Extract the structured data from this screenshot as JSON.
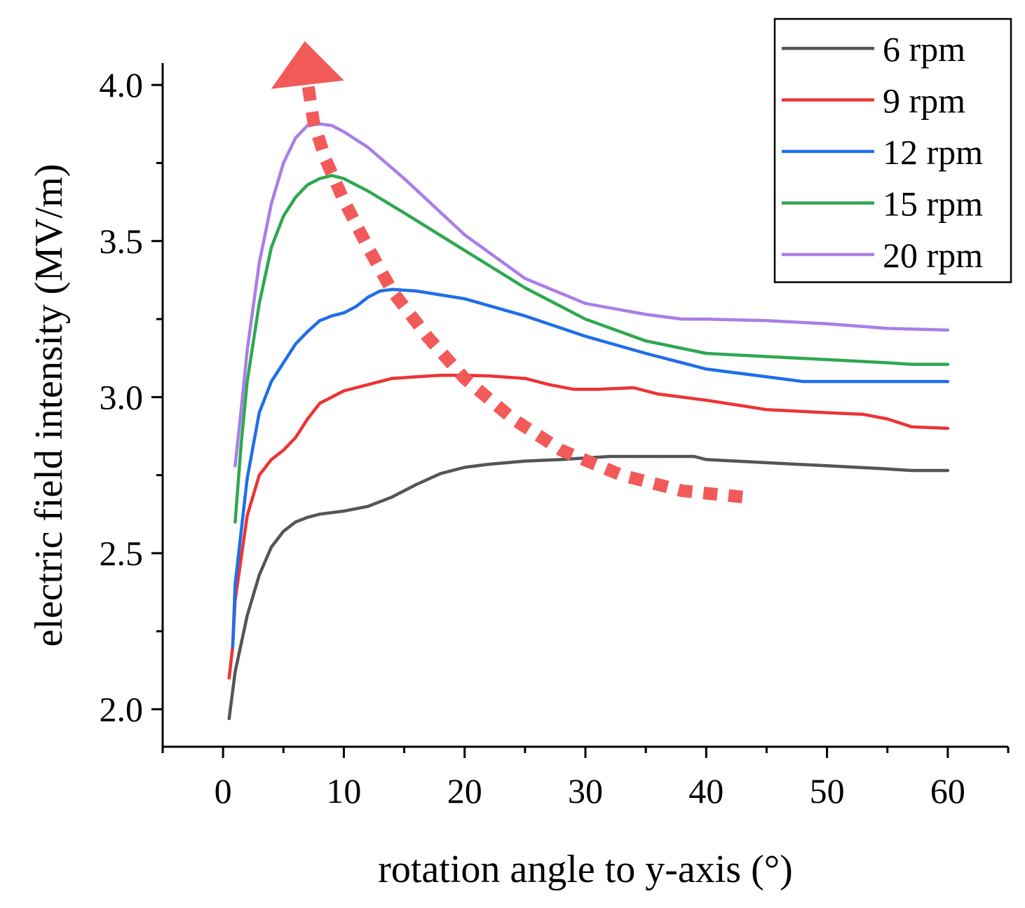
{
  "chart_data": {
    "type": "line",
    "title": "",
    "xlabel": "rotation angle to y-axis (°)",
    "ylabel": "electric field intensity (MV/m)",
    "xlim": [
      -5,
      65
    ],
    "ylim": [
      1.88,
      4.07
    ],
    "x_ticks": [
      0,
      10,
      20,
      30,
      40,
      50,
      60
    ],
    "y_ticks": [
      2.0,
      2.5,
      3.0,
      3.5,
      4.0
    ],
    "x_tick_labels": [
      "0",
      "10",
      "20",
      "30",
      "40",
      "50",
      "60"
    ],
    "y_tick_labels": [
      "2.0",
      "2.5",
      "3.0",
      "3.5",
      "4.0"
    ],
    "grid": false,
    "legend_position": "top-right",
    "series": [
      {
        "name": "6 rpm",
        "color": "#555555",
        "x": [
          0.5,
          1,
          2,
          3,
          4,
          5,
          6,
          7,
          8,
          10,
          12,
          14,
          16,
          18,
          20,
          22,
          25,
          28,
          32,
          36,
          39,
          40,
          45,
          50,
          55,
          57,
          60
        ],
        "y": [
          1.97,
          2.12,
          2.3,
          2.43,
          2.52,
          2.57,
          2.6,
          2.615,
          2.625,
          2.635,
          2.65,
          2.68,
          2.72,
          2.755,
          2.775,
          2.785,
          2.795,
          2.8,
          2.81,
          2.81,
          2.81,
          2.8,
          2.79,
          2.78,
          2.77,
          2.765,
          2.765
        ]
      },
      {
        "name": "9 rpm",
        "color": "#ee3333",
        "x": [
          0.5,
          0.8,
          1,
          2,
          3,
          4,
          5,
          6,
          7,
          8,
          10,
          12,
          14,
          16,
          18,
          20,
          22,
          25,
          27,
          29,
          31,
          34,
          36,
          40,
          45,
          50,
          53,
          55,
          57,
          60
        ],
        "y": [
          2.1,
          2.2,
          2.35,
          2.62,
          2.75,
          2.8,
          2.83,
          2.87,
          2.93,
          2.98,
          3.02,
          3.04,
          3.06,
          3.065,
          3.07,
          3.07,
          3.068,
          3.06,
          3.04,
          3.025,
          3.025,
          3.03,
          3.01,
          2.99,
          2.96,
          2.95,
          2.945,
          2.93,
          2.905,
          2.9
        ]
      },
      {
        "name": "12 rpm",
        "color": "#1f6fe8",
        "x": [
          0.8,
          1,
          2,
          3,
          4,
          5,
          6,
          7,
          8,
          9,
          10,
          11,
          12,
          13,
          14,
          16,
          20,
          25,
          30,
          35,
          40,
          45,
          48,
          50,
          55,
          60
        ],
        "y": [
          2.2,
          2.4,
          2.74,
          2.95,
          3.05,
          3.11,
          3.17,
          3.21,
          3.245,
          3.26,
          3.27,
          3.29,
          3.32,
          3.34,
          3.345,
          3.34,
          3.315,
          3.26,
          3.195,
          3.14,
          3.09,
          3.065,
          3.05,
          3.05,
          3.05,
          3.05
        ]
      },
      {
        "name": "15 rpm",
        "color": "#2ea851",
        "x": [
          1,
          1.5,
          2,
          3,
          4,
          5,
          6,
          7,
          8,
          9,
          10,
          12,
          15,
          20,
          25,
          30,
          35,
          40,
          45,
          50,
          55,
          57,
          60
        ],
        "y": [
          2.6,
          2.85,
          3.05,
          3.3,
          3.48,
          3.58,
          3.64,
          3.68,
          3.7,
          3.71,
          3.7,
          3.66,
          3.59,
          3.47,
          3.35,
          3.25,
          3.18,
          3.14,
          3.13,
          3.12,
          3.11,
          3.105,
          3.105
        ]
      },
      {
        "name": "20 rpm",
        "color": "#a97ee8",
        "x": [
          1,
          1.5,
          2,
          3,
          4,
          5,
          6,
          7,
          8,
          9,
          10,
          12,
          15,
          20,
          25,
          30,
          35,
          38,
          40,
          45,
          50,
          55,
          60
        ],
        "y": [
          2.78,
          2.96,
          3.15,
          3.43,
          3.62,
          3.75,
          3.83,
          3.87,
          3.875,
          3.87,
          3.85,
          3.8,
          3.7,
          3.52,
          3.38,
          3.3,
          3.265,
          3.25,
          3.25,
          3.245,
          3.235,
          3.22,
          3.215
        ]
      }
    ],
    "annotations": [
      {
        "type": "dashed-arrow",
        "color": "#f25a5a",
        "x": [
          43,
          38,
          33,
          28,
          24,
          20,
          17,
          14,
          12,
          10,
          8.5,
          7.5,
          7
        ],
        "y": [
          2.68,
          2.7,
          2.75,
          2.83,
          2.93,
          3.06,
          3.19,
          3.34,
          3.48,
          3.63,
          3.76,
          3.88,
          4.01
        ]
      }
    ]
  }
}
